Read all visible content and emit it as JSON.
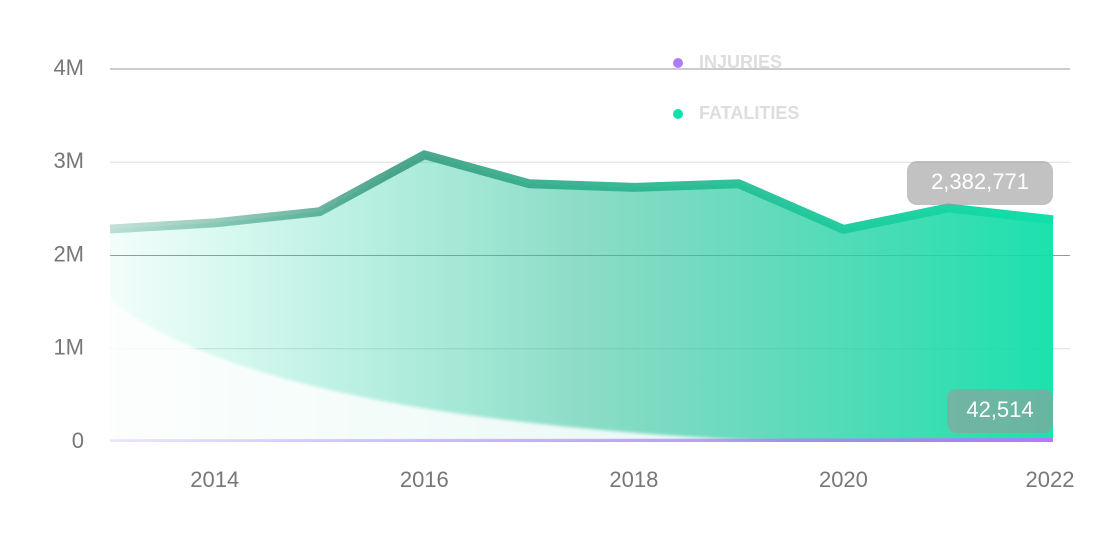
{
  "chart_data": {
    "type": "area",
    "x": [
      2013,
      2014,
      2015,
      2016,
      2017,
      2018,
      2019,
      2020,
      2021,
      2022
    ],
    "series": [
      {
        "name": "INJURIES",
        "color": "#b07cff",
        "values": [
          30000,
          31000,
          32000,
          33000,
          34000,
          35000,
          36000,
          37000,
          40000,
          42514
        ],
        "value_labels": [
          null,
          null,
          null,
          null,
          null,
          null,
          null,
          null,
          null,
          "42,514"
        ]
      },
      {
        "name": "FATALITIES",
        "color": "#10e0aa",
        "values": [
          2284000,
          2350000,
          2470000,
          3080000,
          2770000,
          2730000,
          2770000,
          2280000,
          2510000,
          2382771
        ],
        "value_labels": [
          null,
          null,
          null,
          null,
          null,
          null,
          null,
          null,
          null,
          "2,382,771"
        ]
      }
    ],
    "xlim": [
      2013,
      2022
    ],
    "xticks": [
      2014,
      2016,
      2018,
      2020,
      2022
    ],
    "ylim": [
      0,
      4000000
    ],
    "yticks": [
      0,
      {
        "value": 1000000,
        "label": "1M"
      },
      {
        "value": 2000000,
        "label": "2M"
      },
      {
        "value": 3000000,
        "label": "3M"
      },
      {
        "value": 4000000,
        "label": "4M"
      }
    ],
    "grid": true
  }
}
